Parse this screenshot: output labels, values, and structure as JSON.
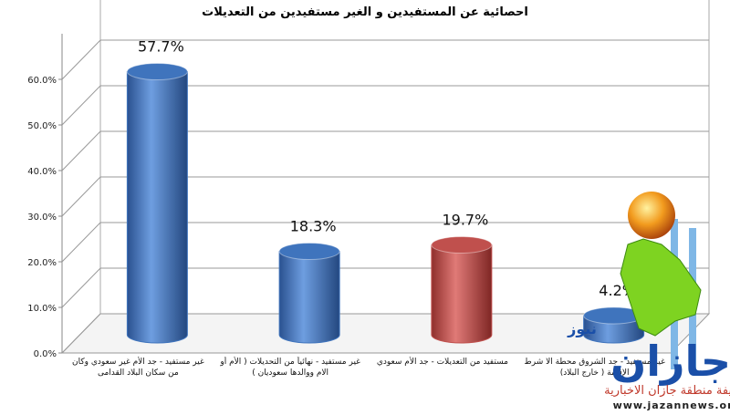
{
  "chart_data": {
    "type": "bar3d",
    "title": "احصائية عن المستفيدين و الغير مستفيدين من التعديلات",
    "categories": [
      "غير مستفيد - جد الأم غير سعودي وكان من سكان البلاد القدامى",
      "غير مستفيد - نهائياً من التحديلات ( الأم أو الام ووالدها سعوديان )",
      "مستفيد من التعديلات - جد الأم سعودي",
      "غير مستفيد - جد الشروق محطة الا شرط الإقامة ( خارج البلاد)"
    ],
    "values": [
      57.7,
      18.3,
      19.7,
      4.2
    ],
    "value_labels": [
      "57.7%",
      "18.3%",
      "19.7%",
      "4.2%"
    ],
    "colors": [
      "#3f74bd",
      "#3f74bd",
      "#c0504d",
      "#3f74bd"
    ],
    "ylim": [
      0,
      70
    ],
    "yticks": [
      {
        "value": 0,
        "label": "0.0%"
      },
      {
        "value": 10,
        "label": "10.0%"
      },
      {
        "value": 20,
        "label": "20.0%"
      },
      {
        "value": 30,
        "label": "30.0%"
      },
      {
        "value": 40,
        "label": "40.0%"
      },
      {
        "value": 50,
        "label": "50.0%"
      },
      {
        "value": 60,
        "label": "60.0%"
      }
    ],
    "grid": true
  },
  "watermark": {
    "logo": "جازان",
    "logo_small": "نيوز",
    "caption": "صحيفة منطقة جازان الاخبارية",
    "url": "www.jazannews.org"
  }
}
